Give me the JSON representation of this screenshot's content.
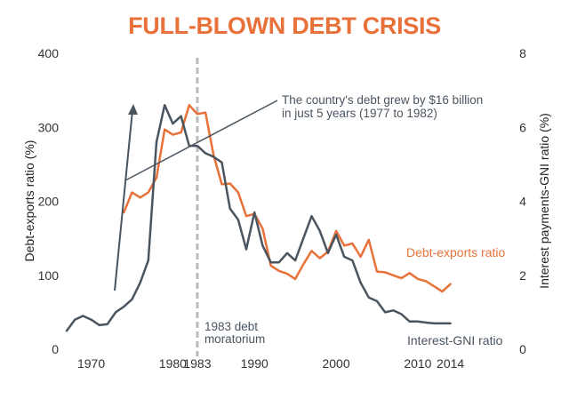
{
  "chart_data": {
    "type": "line",
    "title": "FULL-BLOWN DEBT CRISIS",
    "ylabel_left": "Debt-exports ratio (%)",
    "ylabel_right": "Interest payments-GNI ratio (%)",
    "ylim_left": [
      0,
      400
    ],
    "ylim_right": [
      0,
      8
    ],
    "yticks_left": [
      0,
      100,
      200,
      300,
      400
    ],
    "yticks_right": [
      0,
      2,
      4,
      6,
      8
    ],
    "xlim": [
      1967,
      2016
    ],
    "xticks": [
      {
        "value": 1970,
        "label": "1970"
      },
      {
        "value": 1980,
        "label": "1980"
      },
      {
        "value": 1983,
        "label": "1983"
      },
      {
        "value": 1990,
        "label": "1990"
      },
      {
        "value": 2000,
        "label": "2000"
      },
      {
        "value": 2010,
        "label": "2010"
      },
      {
        "value": 2014,
        "label": "2014"
      }
    ],
    "series": [
      {
        "name": "Debt-exports ratio",
        "axis": "left",
        "color": "#e8713a",
        "x": [
          1974,
          1975,
          1976,
          1977,
          1978,
          1979,
          1980,
          1981,
          1982,
          1983,
          1984,
          1985,
          1986,
          1987,
          1988,
          1989,
          1990,
          1991,
          1992,
          1993,
          1994,
          1995,
          1996,
          1997,
          1998,
          1999,
          2000,
          2001,
          2002,
          2003,
          2004,
          2005,
          2006,
          2007,
          2008,
          2009,
          2010,
          2011,
          2012,
          2013,
          2014
        ],
        "y": [
          185,
          212,
          205,
          212,
          232,
          297,
          290,
          293,
          330,
          318,
          320,
          262,
          223,
          224,
          212,
          180,
          183,
          163,
          113,
          106,
          102,
          95,
          115,
          133,
          123,
          132,
          160,
          140,
          143,
          125,
          148,
          105,
          104,
          100,
          96,
          103,
          95,
          92,
          85,
          78,
          88
        ]
      },
      {
        "name": "Interest-GNI ratio",
        "axis": "right",
        "color": "#4a5560",
        "x": [
          1967,
          1968,
          1969,
          1970,
          1971,
          1972,
          1973,
          1974,
          1975,
          1976,
          1977,
          1977.5,
          1978,
          1979,
          1980,
          1981,
          1982,
          1983,
          1984,
          1985,
          1986,
          1987,
          1988,
          1989,
          1990,
          1991,
          1992,
          1993,
          1994,
          1995,
          1996,
          1997,
          1998,
          1999,
          2000,
          2001,
          2002,
          2003,
          2004,
          2005,
          2006,
          2007,
          2008,
          2009,
          2010,
          2011,
          2012,
          2013,
          2014
        ],
        "y": [
          0.5,
          0.8,
          0.9,
          0.8,
          0.65,
          0.68,
          1.0,
          1.15,
          1.35,
          1.8,
          2.4,
          4.0,
          5.6,
          6.6,
          6.1,
          6.3,
          5.5,
          5.5,
          5.3,
          5.2,
          5.05,
          3.8,
          3.5,
          2.7,
          3.7,
          2.8,
          2.35,
          2.35,
          2.6,
          2.4,
          3.0,
          3.6,
          3.2,
          2.6,
          3.1,
          2.5,
          2.4,
          1.8,
          1.4,
          1.3,
          1.0,
          1.05,
          0.95,
          0.75,
          0.75,
          0.72,
          0.7,
          0.7,
          0.7
        ]
      }
    ],
    "vline": {
      "x": 1983,
      "label_line1": "1983 debt",
      "label_line2": "moratorium"
    },
    "series_labels": {
      "orange": "Debt-exports ratio",
      "gray": "Interest-GNI ratio"
    },
    "annotation": {
      "line1": "The country's debt grew by $16 billion",
      "line2": "in just 5 years (1977 to 1982)"
    }
  }
}
